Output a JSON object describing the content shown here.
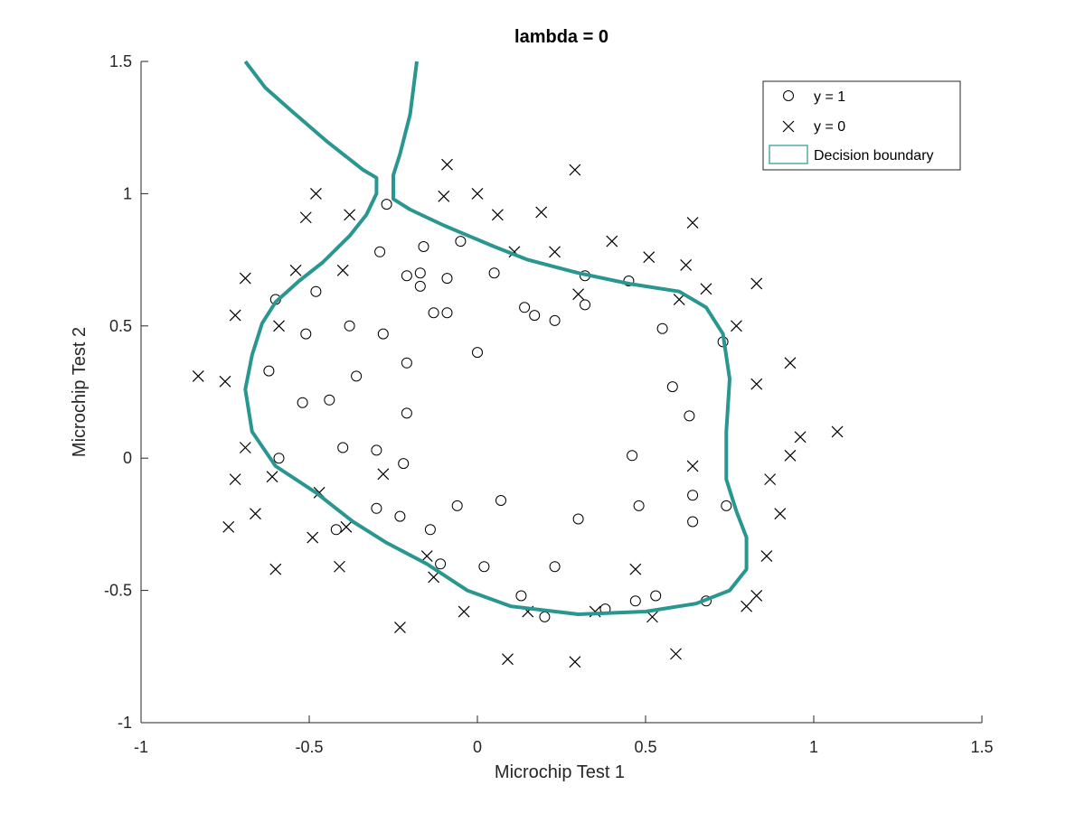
{
  "chart_data": {
    "type": "scatter",
    "title": "lambda = 0",
    "xlabel": "Microchip Test 1",
    "ylabel": "Microchip Test 2",
    "xlim": [
      -1,
      1.5
    ],
    "ylim": [
      -1,
      1.5
    ],
    "xticks": [
      -1,
      -0.5,
      0,
      0.5,
      1,
      1.5
    ],
    "yticks": [
      -1,
      -0.5,
      0,
      0.5,
      1,
      1.5
    ],
    "xtick_labels": [
      "-1",
      "-0.5",
      "0",
      "0.5",
      "1",
      "1.5"
    ],
    "ytick_labels": [
      "-1",
      "-0.5",
      "0",
      "0.5",
      "1",
      "1.5"
    ],
    "grid": false,
    "legend_position": "top-right",
    "colors": {
      "boundary": "#2a9690",
      "markers": "#000000",
      "axes": "#262626"
    },
    "series": [
      {
        "name": "y = 1",
        "marker": "circle",
        "points": [
          [
            -0.27,
            0.96
          ],
          [
            -0.29,
            0.78
          ],
          [
            -0.16,
            0.8
          ],
          [
            -0.05,
            0.82
          ],
          [
            -0.21,
            0.69
          ],
          [
            -0.17,
            0.7
          ],
          [
            -0.09,
            0.68
          ],
          [
            -0.17,
            0.65
          ],
          [
            0.05,
            0.7
          ],
          [
            -0.6,
            0.6
          ],
          [
            -0.48,
            0.63
          ],
          [
            -0.13,
            0.55
          ],
          [
            -0.09,
            0.55
          ],
          [
            0.14,
            0.57
          ],
          [
            0.17,
            0.54
          ],
          [
            0.23,
            0.52
          ],
          [
            0.32,
            0.69
          ],
          [
            0.32,
            0.58
          ],
          [
            0.45,
            0.67
          ],
          [
            0.55,
            0.49
          ],
          [
            0.73,
            0.44
          ],
          [
            -0.38,
            0.5
          ],
          [
            -0.28,
            0.47
          ],
          [
            -0.51,
            0.47
          ],
          [
            0.0,
            0.4
          ],
          [
            -0.21,
            0.36
          ],
          [
            -0.62,
            0.33
          ],
          [
            -0.36,
            0.31
          ],
          [
            -0.44,
            0.22
          ],
          [
            -0.52,
            0.21
          ],
          [
            -0.21,
            0.17
          ],
          [
            0.58,
            0.27
          ],
          [
            0.63,
            0.16
          ],
          [
            -0.59,
            0.0
          ],
          [
            -0.4,
            0.04
          ],
          [
            -0.3,
            0.03
          ],
          [
            -0.22,
            -0.02
          ],
          [
            0.46,
            0.01
          ],
          [
            0.07,
            -0.16
          ],
          [
            -0.06,
            -0.18
          ],
          [
            -0.3,
            -0.19
          ],
          [
            -0.23,
            -0.22
          ],
          [
            0.3,
            -0.23
          ],
          [
            0.48,
            -0.18
          ],
          [
            0.64,
            -0.14
          ],
          [
            0.74,
            -0.18
          ],
          [
            0.64,
            -0.24
          ],
          [
            -0.42,
            -0.27
          ],
          [
            -0.14,
            -0.27
          ],
          [
            -0.11,
            -0.4
          ],
          [
            0.02,
            -0.41
          ],
          [
            0.23,
            -0.41
          ],
          [
            0.13,
            -0.52
          ],
          [
            0.38,
            -0.57
          ],
          [
            0.47,
            -0.54
          ],
          [
            0.53,
            -0.52
          ],
          [
            0.68,
            -0.54
          ],
          [
            0.2,
            -0.6
          ]
        ]
      },
      {
        "name": "y = 0",
        "marker": "cross",
        "points": [
          [
            -0.09,
            1.11
          ],
          [
            0.29,
            1.09
          ],
          [
            -0.48,
            1.0
          ],
          [
            -0.1,
            0.99
          ],
          [
            0.0,
            1.0
          ],
          [
            -0.51,
            0.91
          ],
          [
            -0.38,
            0.92
          ],
          [
            0.06,
            0.92
          ],
          [
            0.19,
            0.93
          ],
          [
            0.64,
            0.89
          ],
          [
            0.4,
            0.82
          ],
          [
            0.11,
            0.78
          ],
          [
            0.23,
            0.78
          ],
          [
            0.51,
            0.76
          ],
          [
            0.62,
            0.73
          ],
          [
            -0.69,
            0.68
          ],
          [
            -0.54,
            0.71
          ],
          [
            -0.4,
            0.71
          ],
          [
            0.3,
            0.62
          ],
          [
            0.6,
            0.6
          ],
          [
            0.68,
            0.64
          ],
          [
            0.83,
            0.66
          ],
          [
            -0.72,
            0.54
          ],
          [
            -0.59,
            0.5
          ],
          [
            0.77,
            0.5
          ],
          [
            0.93,
            0.36
          ],
          [
            -0.83,
            0.31
          ],
          [
            -0.75,
            0.29
          ],
          [
            0.83,
            0.28
          ],
          [
            -0.69,
            0.04
          ],
          [
            0.96,
            0.08
          ],
          [
            1.07,
            0.1
          ],
          [
            0.93,
            0.01
          ],
          [
            0.64,
            -0.03
          ],
          [
            -0.72,
            -0.08
          ],
          [
            -0.61,
            -0.07
          ],
          [
            -0.28,
            -0.06
          ],
          [
            -0.47,
            -0.13
          ],
          [
            0.87,
            -0.08
          ],
          [
            -0.66,
            -0.21
          ],
          [
            -0.74,
            -0.26
          ],
          [
            -0.39,
            -0.26
          ],
          [
            0.9,
            -0.21
          ],
          [
            -0.49,
            -0.3
          ],
          [
            -0.15,
            -0.37
          ],
          [
            -0.13,
            -0.45
          ],
          [
            0.86,
            -0.37
          ],
          [
            -0.6,
            -0.42
          ],
          [
            -0.41,
            -0.41
          ],
          [
            0.47,
            -0.42
          ],
          [
            0.83,
            -0.52
          ],
          [
            0.8,
            -0.56
          ],
          [
            -0.04,
            -0.58
          ],
          [
            0.15,
            -0.58
          ],
          [
            0.35,
            -0.58
          ],
          [
            0.52,
            -0.6
          ],
          [
            -0.23,
            -0.64
          ],
          [
            0.09,
            -0.76
          ],
          [
            0.29,
            -0.77
          ],
          [
            0.59,
            -0.74
          ]
        ]
      },
      {
        "name": "Decision boundary",
        "type": "line",
        "points": [
          [
            -0.69,
            1.5
          ],
          [
            -0.63,
            1.4
          ],
          [
            -0.55,
            1.31
          ],
          [
            -0.45,
            1.2
          ],
          [
            -0.34,
            1.09
          ],
          [
            -0.3,
            1.06
          ],
          [
            -0.3,
            1.0
          ],
          [
            -0.33,
            0.92
          ],
          [
            -0.38,
            0.84
          ],
          [
            -0.46,
            0.74
          ],
          [
            -0.53,
            0.67
          ],
          [
            -0.6,
            0.59
          ],
          [
            -0.64,
            0.51
          ],
          [
            -0.67,
            0.39
          ],
          [
            -0.69,
            0.26
          ],
          [
            -0.67,
            0.1
          ],
          [
            -0.6,
            -0.03
          ],
          [
            -0.48,
            -0.13
          ],
          [
            -0.37,
            -0.24
          ],
          [
            -0.27,
            -0.32
          ],
          [
            -0.15,
            -0.4
          ],
          [
            -0.03,
            -0.5
          ],
          [
            0.1,
            -0.56
          ],
          [
            0.3,
            -0.59
          ],
          [
            0.5,
            -0.58
          ],
          [
            0.65,
            -0.55
          ],
          [
            0.75,
            -0.5
          ],
          [
            0.8,
            -0.42
          ],
          [
            0.8,
            -0.3
          ],
          [
            0.77,
            -0.2
          ],
          [
            0.74,
            -0.08
          ],
          [
            0.74,
            0.1
          ],
          [
            0.75,
            0.3
          ],
          [
            0.73,
            0.47
          ],
          [
            0.68,
            0.57
          ],
          [
            0.6,
            0.63
          ],
          [
            0.45,
            0.66
          ],
          [
            0.3,
            0.7
          ],
          [
            0.15,
            0.75
          ],
          [
            0.05,
            0.8
          ],
          [
            -0.1,
            0.88
          ],
          [
            -0.2,
            0.94
          ],
          [
            -0.25,
            0.98
          ],
          [
            -0.25,
            1.07
          ],
          [
            -0.23,
            1.15
          ],
          [
            -0.2,
            1.3
          ],
          [
            -0.18,
            1.5
          ]
        ]
      }
    ],
    "legend": [
      {
        "label": "y = 1",
        "marker": "circle"
      },
      {
        "label": "y = 0",
        "marker": "cross"
      },
      {
        "label": "Decision boundary",
        "marker": "patch"
      }
    ]
  }
}
